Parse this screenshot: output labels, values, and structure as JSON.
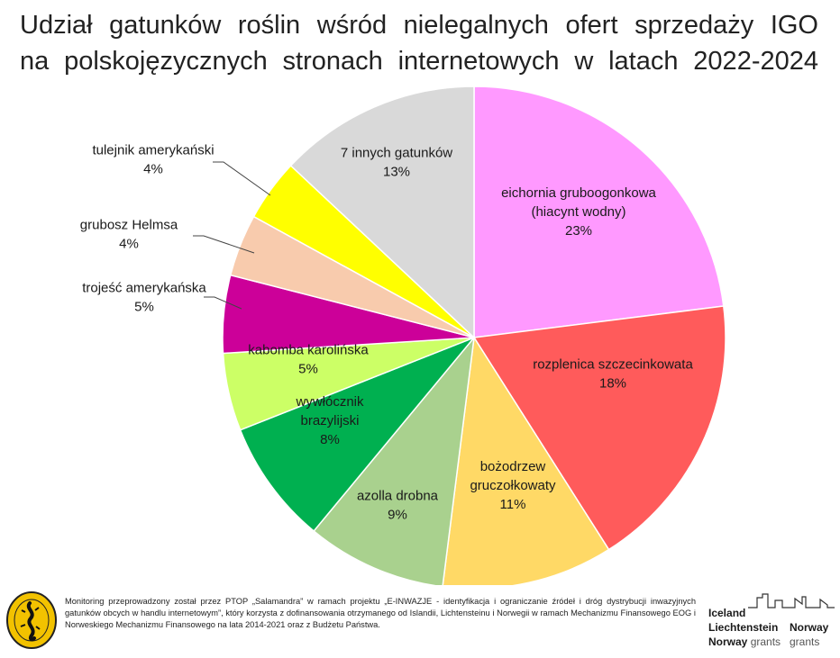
{
  "title_lines": [
    "Udział gatunków roślin wśród nielegalnych ofert sprzedaży IGO",
    "na polskojęzycznych stronach internetowych w latach 2022-2024"
  ],
  "chart_data": {
    "type": "pie",
    "title": "Udział gatunków roślin wśród nielegalnych ofert sprzedaży IGO na polskojęzycznych stronach internetowych w latach 2022-2024",
    "slices": [
      {
        "label": [
          "eichornia gruboogonkowa",
          "(hiacynt wodny)"
        ],
        "value": 23,
        "text": "23%",
        "color": "#FF99FF"
      },
      {
        "label": [
          "rozplenica szczecinkowata"
        ],
        "value": 18,
        "text": "18%",
        "color": "#FF5B5B"
      },
      {
        "label": [
          "bożodrzew",
          "gruczołkowaty"
        ],
        "value": 11,
        "text": "11%",
        "color": "#FFD966"
      },
      {
        "label": [
          "azolla drobna"
        ],
        "value": 9,
        "text": "9%",
        "color": "#A9D18E"
      },
      {
        "label": [
          "wywłócznik",
          "brazylijski"
        ],
        "value": 8,
        "text": "8%",
        "color": "#00B050"
      },
      {
        "label": [
          "kabomba karolińska"
        ],
        "value": 5,
        "text": "5%",
        "color": "#CCFF66"
      },
      {
        "label": [
          "trojeść amerykańska"
        ],
        "value": 5,
        "text": "5%",
        "color": "#CC0099"
      },
      {
        "label": [
          "grubosz Helmsa"
        ],
        "value": 4,
        "text": "4%",
        "color": "#F8CBAD"
      },
      {
        "label": [
          "tulejnik amerykański"
        ],
        "value": 4,
        "text": "4%",
        "color": "#FFFF00"
      },
      {
        "label": [
          "7 innych gatunków"
        ],
        "value": 13,
        "text": "13%",
        "color": "#D9D9D9"
      }
    ]
  },
  "footer": {
    "text": "Monitoring przeprowadzony został przez PTOP „Salamandra” w ramach projektu „E-INWAZJE - identyfikacja i ograniczanie źródeł i dróg dystrybucji inwazyjnych gatunków obcych w handlu internetowym”, który korzysta z dofinansowania otrzymanego od Islandii, Lichtensteinu i Norwegii w ramach Mechanizmu Finansowego EOG i Norweskiego Mechanizmu Finansowego na lata 2014-2021 oraz z Budżetu Państwa.",
    "grants": {
      "line1": "Iceland",
      "line2": "Liechtenstein",
      "line3a": "Norway",
      "line3b": "grants",
      "line4": "Norway",
      "line5": "grants"
    }
  }
}
